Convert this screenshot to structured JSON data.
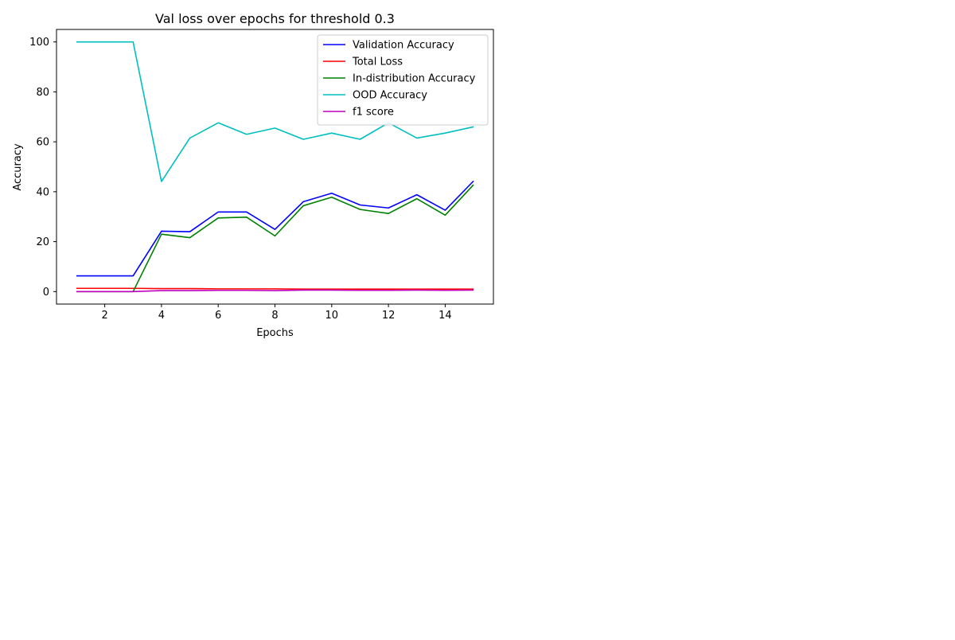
{
  "chart_data": {
    "type": "line",
    "title": "Val loss over epochs for threshold 0.3",
    "xlabel": "Epochs",
    "ylabel": "Accuracy",
    "xlim": [
      0.3,
      15.7
    ],
    "ylim": [
      -5,
      105
    ],
    "xticks": [
      2,
      4,
      6,
      8,
      10,
      12,
      14
    ],
    "yticks": [
      0,
      20,
      40,
      60,
      80,
      100
    ],
    "grid": false,
    "legend_position": "top-right",
    "x": [
      1,
      2,
      3,
      4,
      5,
      6,
      7,
      8,
      9,
      10,
      11,
      12,
      13,
      14,
      15
    ],
    "series": [
      {
        "name": "Validation Accuracy",
        "color": "#0000ff",
        "values": [
          6.3,
          6.3,
          6.3,
          24.2,
          24.0,
          31.9,
          31.9,
          24.9,
          36.0,
          39.4,
          34.7,
          33.5,
          38.8,
          32.6,
          44.3
        ]
      },
      {
        "name": "Total Loss",
        "color": "#ff0000",
        "values": [
          1.3,
          1.3,
          1.3,
          1.2,
          1.2,
          1.1,
          1.1,
          1.1,
          1.0,
          1.0,
          1.0,
          1.0,
          1.0,
          1.0,
          1.0
        ]
      },
      {
        "name": "In-distribution Accuracy",
        "color": "#008000",
        "values": [
          0.0,
          0.0,
          0.0,
          23.0,
          21.6,
          29.5,
          29.8,
          22.3,
          34.4,
          37.8,
          32.9,
          31.3,
          37.2,
          30.6,
          42.8
        ]
      },
      {
        "name": "OOD Accuracy",
        "color": "#00bfbf",
        "values": [
          100.0,
          100.0,
          100.0,
          44.1,
          61.5,
          67.6,
          63.0,
          65.5,
          61.0,
          63.5,
          61.0,
          67.6,
          61.5,
          63.5,
          66.0
        ]
      },
      {
        "name": "f1 score",
        "color": "#bf00bf",
        "values": [
          0.0,
          0.0,
          0.0,
          0.4,
          0.4,
          0.5,
          0.5,
          0.4,
          0.6,
          0.6,
          0.5,
          0.5,
          0.6,
          0.5,
          0.6
        ]
      }
    ]
  }
}
